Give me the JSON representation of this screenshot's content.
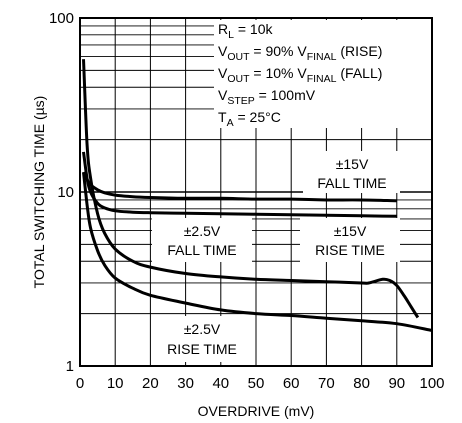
{
  "chart_data": {
    "type": "line",
    "title": "",
    "xlabel": "OVERDRIVE (mV)",
    "ylabel": "TOTAL SWITCHING TIME (µs)",
    "x_axis": {
      "scale": "linear",
      "lim": [
        0,
        100
      ],
      "ticks": [
        "0",
        "10",
        "20",
        "30",
        "40",
        "50",
        "60",
        "70",
        "80",
        "90",
        "100"
      ]
    },
    "y_axis": {
      "scale": "log",
      "lim": [
        1,
        100
      ],
      "ticks": [
        "1",
        "10",
        "100"
      ]
    },
    "grid": true,
    "conditions": [
      {
        "main": "R",
        "sub": "L",
        "rest": " = 10k"
      },
      {
        "main": "V",
        "sub": "OUT",
        "mid": " = 90% V",
        "sub2": "FINAL",
        "rest": " (RISE)"
      },
      {
        "main": "V",
        "sub": "OUT",
        "mid": " = 10% V",
        "sub2": "FINAL",
        "rest": " (FALL)"
      },
      {
        "main": "V",
        "sub": "STEP",
        "rest": " = 100mV"
      },
      {
        "main": "T",
        "sub": "A",
        "rest": " = 25°C"
      }
    ],
    "annotations": [
      {
        "line1": "±15V",
        "line2": "FALL TIME"
      },
      {
        "line1": "±2.5V",
        "line2": "FALL TIME"
      },
      {
        "line1": "±15V",
        "line2": "RISE TIME"
      },
      {
        "line1": "±2.5V",
        "line2": "RISE TIME"
      }
    ],
    "series": [
      {
        "x": [
          1,
          2,
          3,
          5,
          7,
          10,
          15,
          20,
          30,
          40,
          50,
          60,
          70,
          80,
          90
        ],
        "y": [
          13,
          11.8,
          11,
          10.3,
          9.9,
          9.6,
          9.4,
          9.3,
          9.2,
          9.2,
          9.1,
          9.1,
          9.0,
          9.0,
          8.9
        ]
      },
      {
        "x": [
          1,
          2,
          3,
          5,
          7,
          10,
          15,
          20,
          30,
          40,
          50,
          60,
          70,
          80,
          90
        ],
        "y": [
          17,
          12,
          10,
          8.6,
          8.1,
          7.8,
          7.65,
          7.6,
          7.55,
          7.5,
          7.45,
          7.4,
          7.35,
          7.3,
          7.25
        ]
      },
      {
        "x": [
          1,
          2,
          3,
          5,
          7,
          10,
          15,
          20,
          30,
          40,
          50,
          60,
          70,
          80,
          82,
          86,
          88,
          90,
          92,
          94,
          96
        ],
        "y": [
          58,
          19,
          12,
          7.5,
          5.8,
          4.7,
          4.0,
          3.7,
          3.4,
          3.25,
          3.15,
          3.1,
          3.05,
          3.0,
          3.0,
          3.15,
          3.1,
          2.9,
          2.55,
          2.2,
          1.9
        ]
      },
      {
        "x": [
          1,
          2,
          3,
          5,
          7,
          10,
          15,
          20,
          30,
          40,
          50,
          60,
          70,
          80,
          90,
          100
        ],
        "y": [
          13,
          8.5,
          6.2,
          4.6,
          3.8,
          3.2,
          2.8,
          2.55,
          2.3,
          2.1,
          2.0,
          1.95,
          1.88,
          1.82,
          1.75,
          1.6
        ]
      }
    ]
  }
}
